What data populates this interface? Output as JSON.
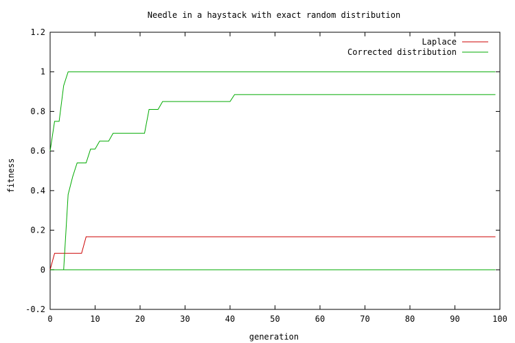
{
  "chart_data": {
    "type": "line",
    "title": "Needle in a haystack with exact random distribution",
    "xlabel": "generation",
    "ylabel": "fitness",
    "xlim": [
      0,
      100
    ],
    "ylim": [
      -0.2,
      1.2
    ],
    "xticks": [
      0,
      10,
      20,
      30,
      40,
      50,
      60,
      70,
      80,
      90,
      100
    ],
    "yticks": [
      -0.2,
      0,
      0.2,
      0.4,
      0.6,
      0.8,
      1,
      1.2
    ],
    "xtick_labels": [
      "0",
      "10",
      "20",
      "30",
      "40",
      "50",
      "60",
      "70",
      "80",
      "90",
      "100"
    ],
    "ytick_labels": [
      "-0.2",
      "0",
      "0.2",
      "0.4",
      "0.6",
      "0.8",
      "1",
      "1.2"
    ],
    "grid": false,
    "legend_position": "top-right",
    "series": [
      {
        "name": "Laplace",
        "color": "#cc0000",
        "lines": [
          {
            "x": [
              0,
              1,
              7,
              8,
              99
            ],
            "y": [
              0,
              0.083,
              0.083,
              0.167,
              0.167
            ]
          }
        ]
      },
      {
        "name": "Corrected distribution",
        "color": "#00aa00",
        "lines": [
          {
            "x": [
              0,
              1,
              2,
              3,
              4,
              99
            ],
            "y": [
              0.6,
              0.75,
              0.75,
              0.93,
              1,
              1
            ]
          },
          {
            "x": [
              3,
              4,
              5,
              6,
              7,
              8,
              9,
              10,
              11,
              12,
              13,
              14,
              15,
              16,
              17,
              18,
              19,
              20,
              21,
              22,
              23,
              24,
              25,
              26,
              27,
              28,
              29,
              30,
              31,
              32,
              33,
              34,
              35,
              36,
              37,
              38,
              39,
              40,
              41,
              99
            ],
            "y": [
              0,
              0.38,
              0.47,
              0.54,
              0.54,
              0.54,
              0.61,
              0.61,
              0.65,
              0.65,
              0.65,
              0.69,
              0.69,
              0.69,
              0.69,
              0.69,
              0.69,
              0.69,
              0.69,
              0.81,
              0.81,
              0.81,
              0.85,
              0.85,
              0.85,
              0.85,
              0.85,
              0.85,
              0.85,
              0.85,
              0.85,
              0.85,
              0.85,
              0.85,
              0.85,
              0.85,
              0.85,
              0.85,
              0.885,
              0.885
            ]
          },
          {
            "x": [
              0,
              99
            ],
            "y": [
              0,
              0
            ]
          }
        ]
      }
    ]
  }
}
